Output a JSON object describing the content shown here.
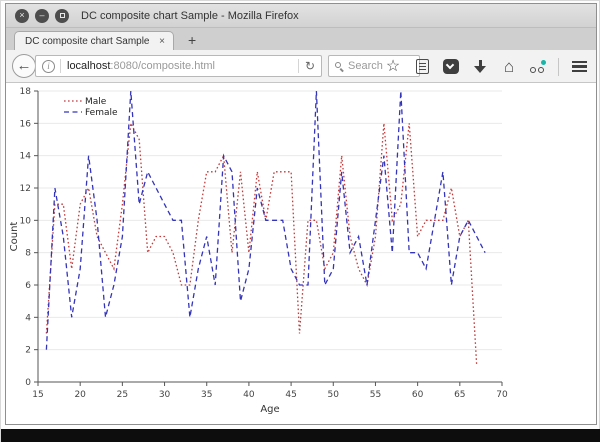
{
  "window": {
    "title": "DC composite chart Sample - Mozilla Firefox",
    "controls": {
      "close": "×",
      "minimize": "–"
    }
  },
  "tab_bar": {
    "active_tab_label": "DC composite chart Sample",
    "tab_close_label": "×",
    "new_tab_label": "+"
  },
  "toolbar": {
    "back_glyph": "←",
    "info_glyph": "i",
    "url_host": "localhost",
    "url_rest": ":8080/composite.html",
    "reload_glyph": "↻",
    "search_placeholder": "Search",
    "star_glyph": "☆",
    "home_glyph": "⌂"
  },
  "chart_data": {
    "type": "line",
    "title": "",
    "xlabel": "Age",
    "ylabel": "Count",
    "xlim": [
      15,
      70
    ],
    "ylim": [
      0,
      18
    ],
    "x_ticks": [
      15,
      20,
      25,
      30,
      35,
      40,
      45,
      50,
      55,
      60,
      65,
      70
    ],
    "y_ticks": [
      0,
      2,
      4,
      6,
      8,
      10,
      12,
      14,
      16,
      18
    ],
    "grid": "horizontal",
    "legend_position": "top-left",
    "series": [
      {
        "name": "Male",
        "color": "#c23b3b",
        "style": "dotted",
        "x": [
          16,
          17,
          18,
          19,
          20,
          21,
          22,
          23,
          24,
          25,
          26,
          27,
          28,
          29,
          30,
          31,
          32,
          33,
          34,
          35,
          36,
          37,
          38,
          39,
          40,
          41,
          42,
          43,
          44,
          45,
          46,
          47,
          48,
          49,
          50,
          51,
          52,
          53,
          54,
          55,
          56,
          57,
          58,
          59,
          60,
          61,
          62,
          63,
          64,
          65,
          66,
          67
        ],
        "values": [
          3,
          11,
          11,
          7,
          11,
          12,
          9,
          8,
          7,
          11,
          16,
          15,
          8,
          9,
          9,
          8,
          6,
          6,
          10,
          13,
          13,
          14,
          8,
          13,
          8,
          13,
          10,
          13,
          13,
          13,
          3,
          10,
          10,
          7,
          8,
          14,
          9,
          7,
          6,
          9,
          16,
          10,
          11,
          16,
          9,
          10,
          10,
          10,
          12,
          9,
          10,
          1
        ]
      },
      {
        "name": "Female",
        "color": "#3434bb",
        "style": "dashed",
        "x": [
          16,
          17,
          18,
          19,
          20,
          21,
          22,
          23,
          24,
          25,
          26,
          27,
          28,
          29,
          30,
          31,
          32,
          33,
          34,
          35,
          36,
          37,
          38,
          39,
          40,
          41,
          42,
          43,
          44,
          45,
          46,
          47,
          48,
          49,
          50,
          51,
          52,
          53,
          54,
          55,
          56,
          57,
          58,
          59,
          60,
          61,
          62,
          63,
          64,
          65,
          66,
          67,
          68
        ],
        "values": [
          2,
          12,
          9,
          4,
          7,
          14,
          10,
          4,
          6,
          9,
          18,
          11,
          13,
          12,
          11,
          10,
          10,
          4,
          7,
          9,
          6,
          14,
          13,
          5,
          7,
          12,
          10,
          10,
          10,
          7,
          6,
          6,
          18,
          6,
          7,
          13,
          8,
          9,
          6,
          10,
          14,
          8,
          18,
          8,
          8,
          7,
          10,
          13,
          6,
          9,
          10,
          9,
          8
        ]
      }
    ]
  }
}
